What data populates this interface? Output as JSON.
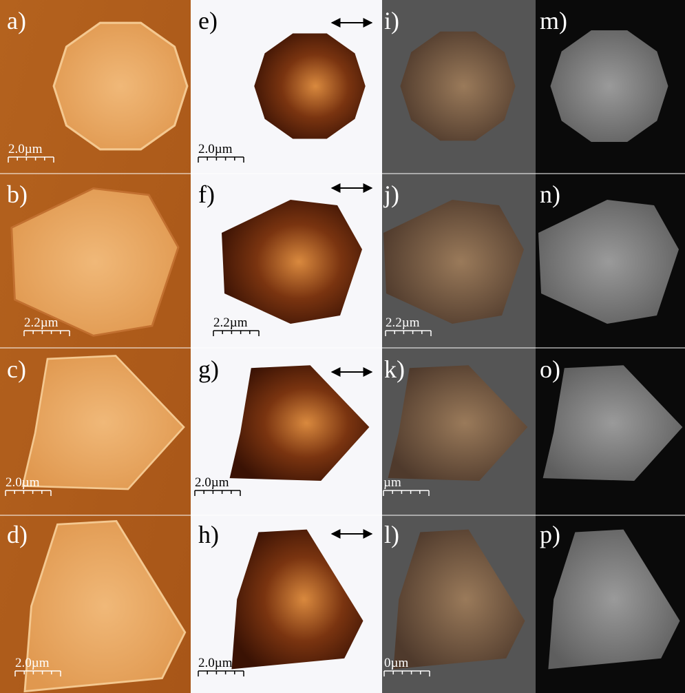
{
  "panels": [
    {
      "label": "a)",
      "scale_bar": "2.0µm"
    },
    {
      "label": "b)",
      "scale_bar": "2.2µm"
    },
    {
      "label": "c)",
      "scale_bar": "2.0µm"
    },
    {
      "label": "d)",
      "scale_bar": "2.0µm"
    },
    {
      "label": "e)",
      "scale_bar": "2.0µm"
    },
    {
      "label": "f)",
      "scale_bar": "2.2µm"
    },
    {
      "label": "g)",
      "scale_bar": "2.0µm"
    },
    {
      "label": "h)",
      "scale_bar": "2.0µm"
    },
    {
      "label": "i)"
    },
    {
      "label": "j)",
      "scale_bar": "2.2µm"
    },
    {
      "label": "k)",
      "scale_bar": "µm"
    },
    {
      "label": "l)",
      "scale_bar": "0µm"
    },
    {
      "label": "m)"
    },
    {
      "label": "n)"
    },
    {
      "label": "o)"
    },
    {
      "label": "p)"
    }
  ]
}
